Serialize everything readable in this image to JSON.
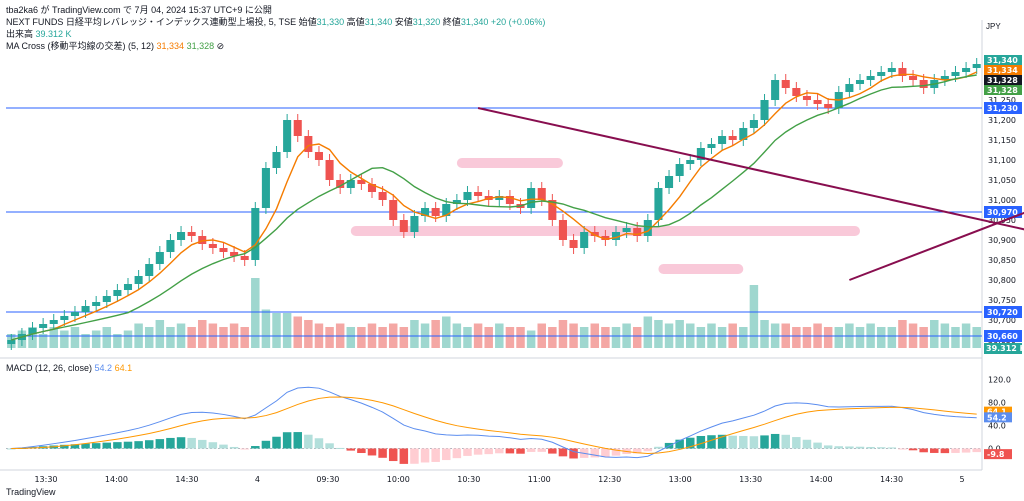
{
  "header": {
    "publisher": "tba2ka6 が TradingView.com で 7月 04, 2024 15:37 UTC+9 に公開",
    "symbol_line": "NEXT FUNDS 日経平均レバレッジ・インデックス連動型上場投, 5, TSE",
    "ohlc": {
      "open_label": "始値",
      "open": "31,330",
      "high_label": "高値",
      "high": "31,340",
      "low_label": "安値",
      "low": "31,320",
      "close_label": "終値",
      "close": "31,340",
      "change": "+20 (+0.06%)"
    },
    "volume_label": "出来高",
    "volume_value": "39.312 K",
    "ma_label": "MA Cross (移動平均線の交差) (5, 12)",
    "ma_fast": "31,334",
    "ma_slow": "31,328",
    "currency": "JPY",
    "macd_label": "MACD (12, 26, close)",
    "macd_hist": "-9.8",
    "macd_line": "54.2",
    "signal_line": "64.1"
  },
  "brand": "TradingView",
  "colors": {
    "up": "#26a69a",
    "down": "#ef5350",
    "ma_fast": "#f57c00",
    "ma_slow": "#43a047",
    "hline": "#2962ff",
    "trend": "#880e4f",
    "zone": "#f8bbd0",
    "macd": "#5b8def",
    "signal": "#ff9800"
  },
  "chart_data": {
    "type": "candlestick",
    "y_ticks": [
      "31,350",
      "31,300",
      "31,250",
      "31,200",
      "31,150",
      "31,100",
      "31,050",
      "31,000",
      "30,950",
      "30,900",
      "30,850",
      "30,800",
      "30,750",
      "30,700",
      "30,650"
    ],
    "ylim": [
      30630,
      31370
    ],
    "x_ticks": [
      "13:30",
      "14:00",
      "14:30",
      "4",
      "09:30",
      "10:00",
      "10:30",
      "11:00",
      "12:30",
      "13:00",
      "13:30",
      "14:00",
      "14:30",
      "5"
    ],
    "horizontal_lines": [
      {
        "price": 30660,
        "label": "30,660"
      },
      {
        "price": 30720,
        "label": "30,720"
      },
      {
        "price": 30970,
        "label": "30,970"
      },
      {
        "price": 31230,
        "label": "31,230"
      }
    ],
    "price_tags": [
      {
        "label": "31,340",
        "color": "#26a69a"
      },
      {
        "label": "31,334",
        "color": "#f57c00"
      },
      {
        "label": "31,328",
        "color": "#131722"
      },
      {
        "label": "31,328",
        "color": "#43a047"
      }
    ],
    "volume_tag": "39.312 K",
    "trendlines": [
      {
        "from": [
          44,
          31230
        ],
        "to": [
          100,
          30900
        ]
      },
      {
        "from": [
          79,
          30800
        ],
        "to": [
          133,
          31350
        ]
      }
    ],
    "closes": [
      30650,
      30665,
      30680,
      30690,
      30700,
      30710,
      30720,
      30735,
      30745,
      30760,
      30775,
      30790,
      30810,
      30840,
      30870,
      30900,
      30920,
      30910,
      30890,
      30880,
      30870,
      30860,
      30850,
      30980,
      31080,
      31120,
      31200,
      31160,
      31120,
      31100,
      31050,
      31030,
      31050,
      31040,
      31020,
      31000,
      30950,
      30920,
      30960,
      30980,
      30960,
      30990,
      31000,
      31020,
      31010,
      31000,
      31010,
      30990,
      30980,
      31030,
      31000,
      30950,
      30900,
      30880,
      30920,
      30910,
      30900,
      30920,
      30930,
      30910,
      30950,
      31030,
      31060,
      31090,
      31100,
      31130,
      31140,
      31160,
      31150,
      31180,
      31200,
      31250,
      31300,
      31280,
      31260,
      31250,
      31240,
      31230,
      31270,
      31290,
      31300,
      31310,
      31320,
      31330,
      31310,
      31300,
      31280,
      31300,
      31310,
      31320,
      31330,
      31340
    ],
    "volumes": [
      0.2,
      0.25,
      0.3,
      0.2,
      0.3,
      0.25,
      0.3,
      0.2,
      0.25,
      0.3,
      0.2,
      0.25,
      0.35,
      0.3,
      0.4,
      0.3,
      0.35,
      0.3,
      0.4,
      0.35,
      0.3,
      0.35,
      0.3,
      1.0,
      0.55,
      0.5,
      0.5,
      0.45,
      0.4,
      0.35,
      0.3,
      0.35,
      0.3,
      0.3,
      0.35,
      0.3,
      0.35,
      0.3,
      0.4,
      0.35,
      0.4,
      0.45,
      0.35,
      0.3,
      0.35,
      0.3,
      0.35,
      0.3,
      0.3,
      0.25,
      0.35,
      0.3,
      0.4,
      0.35,
      0.3,
      0.35,
      0.3,
      0.3,
      0.35,
      0.3,
      0.45,
      0.4,
      0.35,
      0.4,
      0.35,
      0.3,
      0.35,
      0.3,
      0.35,
      0.3,
      0.9,
      0.4,
      0.35,
      0.35,
      0.3,
      0.3,
      0.35,
      0.3,
      0.3,
      0.35,
      0.3,
      0.35,
      0.3,
      0.3,
      0.4,
      0.35,
      0.3,
      0.4,
      0.35,
      0.3,
      0.35,
      0.3
    ],
    "macd_ylim": [
      -20,
      140
    ],
    "macd_ticks": [
      "120.0",
      "80.0",
      "40.0",
      "0.0"
    ]
  }
}
